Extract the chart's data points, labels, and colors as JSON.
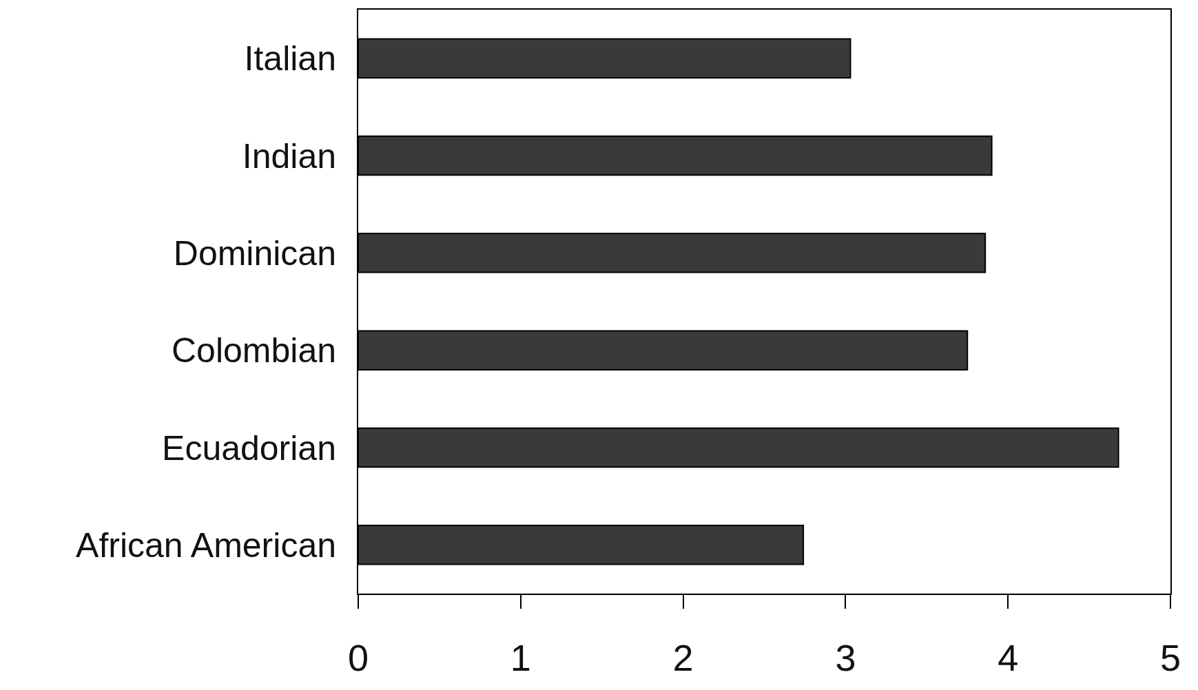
{
  "chart_data": {
    "type": "bar",
    "orientation": "horizontal",
    "categories": [
      "Italian",
      "Indian",
      "Dominican",
      "Colombian",
      "Ecuadorian",
      "African American"
    ],
    "values": [
      3.03,
      3.9,
      3.86,
      3.75,
      4.68,
      2.74
    ],
    "color": "#3a3a3a",
    "xlim": [
      0,
      5
    ],
    "xticks": [
      0,
      1,
      2,
      3,
      4,
      5
    ],
    "grid": false
  }
}
